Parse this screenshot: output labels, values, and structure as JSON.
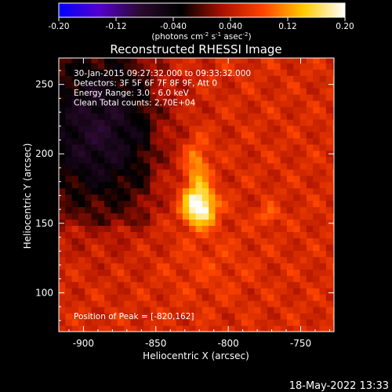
{
  "colorbar": {
    "ticks": [
      "-0.20",
      "-0.12",
      "-0.040",
      "0.040",
      "0.12",
      "0.20"
    ],
    "label_prefix": "(photons cm",
    "label_exp1": "-2",
    "label_mid": " s",
    "label_exp2": "-1",
    "label_mid2": " asec",
    "label_exp3": "-2",
    "label_suffix": ")",
    "range": [
      -0.2,
      0.2
    ],
    "stops": [
      "#0000ff",
      "#5500cc",
      "#2a0a2e",
      "#000000",
      "#aa1100",
      "#ff4400",
      "#ffcc00",
      "#ffffff"
    ]
  },
  "chart_data": {
    "type": "heatmap",
    "title": "Reconstructed RHESSI Image",
    "xlabel": "Heliocentric X (arcsec)",
    "ylabel": "Heliocentric Y (arcsec)",
    "xlim": [
      -917,
      -727
    ],
    "ylim": [
      72,
      269
    ],
    "xticks": [
      "-900",
      "-850",
      "-800",
      "-750"
    ],
    "xtick_values": [
      -900,
      -850,
      -800,
      -750
    ],
    "yticks": [
      "100",
      "150",
      "200",
      "250"
    ],
    "ytick_values": [
      100,
      150,
      200,
      250
    ],
    "info_lines": [
      "30-Jan-2015 09:27:32.000 to 09:33:32.000",
      "Detectors: 3F 5F 6F 7F 8F 9F, Att 0",
      "Energy Range: 3.0 - 6.0 keV",
      "Clean    Total counts: 2.70E+04"
    ],
    "peak_label": "Position of Peak = [-820,162]",
    "peak": [
      -820,
      162
    ]
  },
  "footer": {
    "timestamp": "18-May-2022 13:33"
  }
}
